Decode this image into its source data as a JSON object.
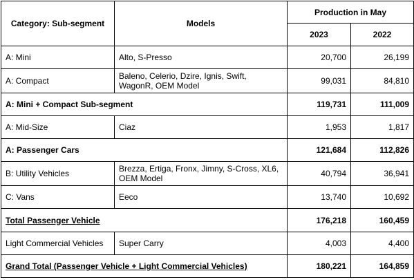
{
  "header": {
    "category": "Category: Sub-segment",
    "models": "Models",
    "production": "Production in May",
    "year1": "2023",
    "year2": "2022"
  },
  "rows": [
    {
      "category": "A: Mini",
      "models": "Alto, S-Presso",
      "y2023": "20,700",
      "y2022": "26,199"
    },
    {
      "category": "A: Compact",
      "models": "Baleno, Celerio, Dzire, Ignis, Swift, WagonR, OEM Model",
      "y2023": "99,031",
      "y2022": "84,810"
    },
    {
      "category": "A: Mini + Compact Sub-segment",
      "y2023": "119,731",
      "y2022": "111,009"
    },
    {
      "category": "A: Mid-Size",
      "models": "Ciaz",
      "y2023": "1,953",
      "y2022": "1,817"
    },
    {
      "category": "A: Passenger Cars",
      "y2023": "121,684",
      "y2022": "112,826"
    },
    {
      "category": "B: Utility Vehicles",
      "models": "Brezza, Ertiga, Fronx, Jimny, S-Cross, XL6, OEM Model",
      "y2023": "40,794",
      "y2022": "36,941"
    },
    {
      "category": "C: Vans",
      "models": "Eeco",
      "y2023": "13,740",
      "y2022": "10,692"
    },
    {
      "category": "Total Passenger Vehicle",
      "y2023": "176,218",
      "y2022": "160,459"
    },
    {
      "category": "Light Commercial Vehicles",
      "models": "Super Carry",
      "y2023": "4,003",
      "y2022": "4,400"
    },
    {
      "category": "Grand Total (Passenger Vehicle + Light Commercial Vehicles)",
      "y2023": "180,221",
      "y2022": "164,859"
    }
  ]
}
